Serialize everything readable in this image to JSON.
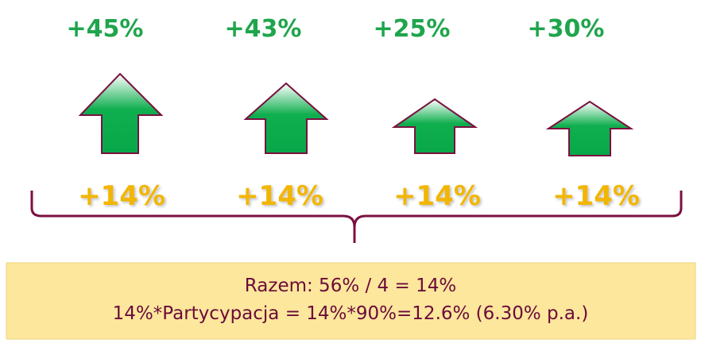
{
  "top_changes": [
    "+45%",
    "+43%",
    "+25%",
    "+30%"
  ],
  "base_changes": [
    "+14%",
    "+14%",
    "+14%",
    "+14%"
  ],
  "summary": {
    "lines": [
      "Razem: 56% / 4 = 14%",
      "14%*Partycypacja = 14%*90%=12.6% (6.30% p.a.)"
    ]
  }
}
